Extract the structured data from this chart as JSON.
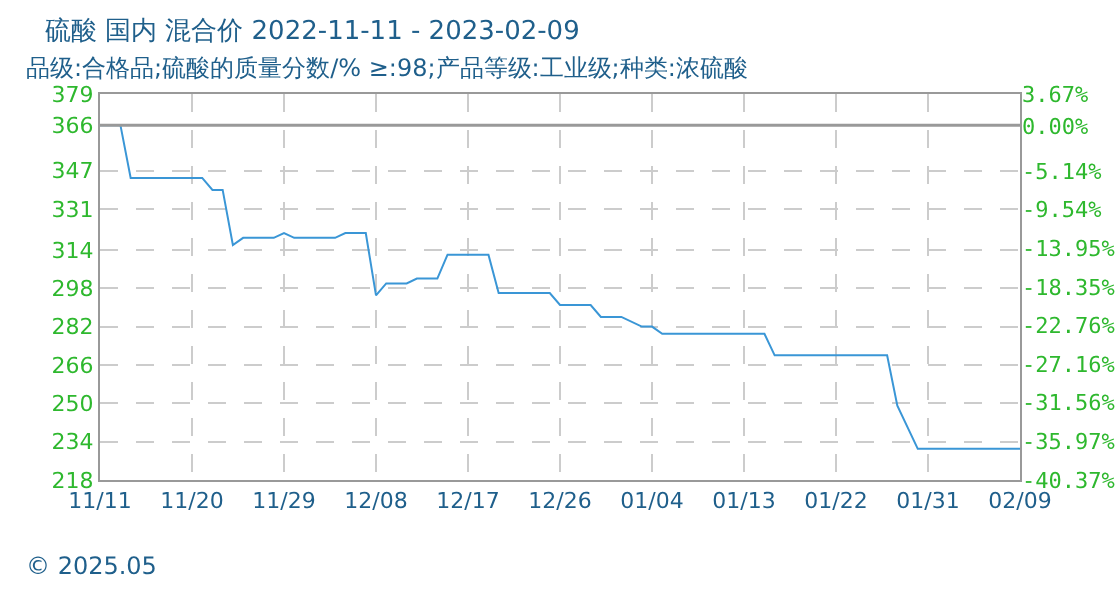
{
  "chart_data": {
    "type": "line",
    "title": "硫酸 国内 混合价 2022-11-11 - 2023-02-09",
    "subtitle": "品级:合格品;硫酸的质量分数/% ≥:98;产品等级:工业级;种类:浓硫酸",
    "x": [
      "2022-11-11",
      "2022-11-13",
      "2022-11-14",
      "2022-11-21",
      "2022-11-22",
      "2022-11-23",
      "2022-11-24",
      "2022-11-25",
      "2022-11-28",
      "2022-11-29",
      "2022-11-30",
      "2022-12-04",
      "2022-12-05",
      "2022-12-07",
      "2022-12-08",
      "2022-12-09",
      "2022-12-11",
      "2022-12-12",
      "2022-12-14",
      "2022-12-15",
      "2022-12-19",
      "2022-12-20",
      "2022-12-25",
      "2022-12-26",
      "2022-12-29",
      "2022-12-30",
      "2023-01-01",
      "2023-01-03",
      "2023-01-04",
      "2023-01-05",
      "2023-01-15",
      "2023-01-16",
      "2023-01-27",
      "2023-01-28",
      "2023-01-30",
      "2023-02-09"
    ],
    "series": [
      {
        "color": "#3a96d6",
        "values": [
          366,
          366,
          344,
          344,
          339,
          339,
          316,
          319,
          319,
          321,
          319,
          319,
          321,
          321,
          295,
          300,
          300,
          302,
          302,
          312,
          312,
          296,
          296,
          291,
          291,
          286,
          286,
          282,
          282,
          279,
          279,
          270,
          270,
          249,
          231,
          231
        ]
      }
    ],
    "xlim": [
      "2022-11-11",
      "2023-02-09"
    ],
    "xticks": [
      {
        "value": "2022-11-11",
        "label": "11/11"
      },
      {
        "value": "2022-11-20",
        "label": "11/20"
      },
      {
        "value": "2022-11-29",
        "label": "11/29"
      },
      {
        "value": "2022-12-08",
        "label": "12/08"
      },
      {
        "value": "2022-12-17",
        "label": "12/17"
      },
      {
        "value": "2022-12-26",
        "label": "12/26"
      },
      {
        "value": "2023-01-04",
        "label": "01/04"
      },
      {
        "value": "2023-01-13",
        "label": "01/13"
      },
      {
        "value": "2023-01-22",
        "label": "01/22"
      },
      {
        "value": "2023-01-31",
        "label": "01/31"
      },
      {
        "value": "2023-02-09",
        "label": "02/09"
      }
    ],
    "ylim": [
      218,
      379
    ],
    "yticks": [
      218,
      234,
      250,
      266,
      282,
      298,
      314,
      331,
      347,
      366,
      379
    ],
    "y2lim": [
      -40.37,
      3.67
    ],
    "y2ticks": [
      {
        "value": -40.37,
        "label": "-40.37%"
      },
      {
        "value": -35.97,
        "label": "-35.97%"
      },
      {
        "value": -31.56,
        "label": "-31.56%"
      },
      {
        "value": -27.16,
        "label": "-27.16%"
      },
      {
        "value": -22.76,
        "label": "-22.76%"
      },
      {
        "value": -18.35,
        "label": "-18.35%"
      },
      {
        "value": -13.95,
        "label": "-13.95%"
      },
      {
        "value": -9.54,
        "label": "-9.54%"
      },
      {
        "value": -5.14,
        "label": "-5.14%"
      },
      {
        "value": 0,
        "label": "0.00%"
      },
      {
        "value": 3.67,
        "label": "3.67%"
      }
    ],
    "ref_lines": [
      {
        "axis": "y",
        "value": 366,
        "color": "#999999"
      }
    ],
    "grid": true,
    "marker": "none",
    "line_style": "solid",
    "annotations": [
      "© 2025.05"
    ]
  }
}
